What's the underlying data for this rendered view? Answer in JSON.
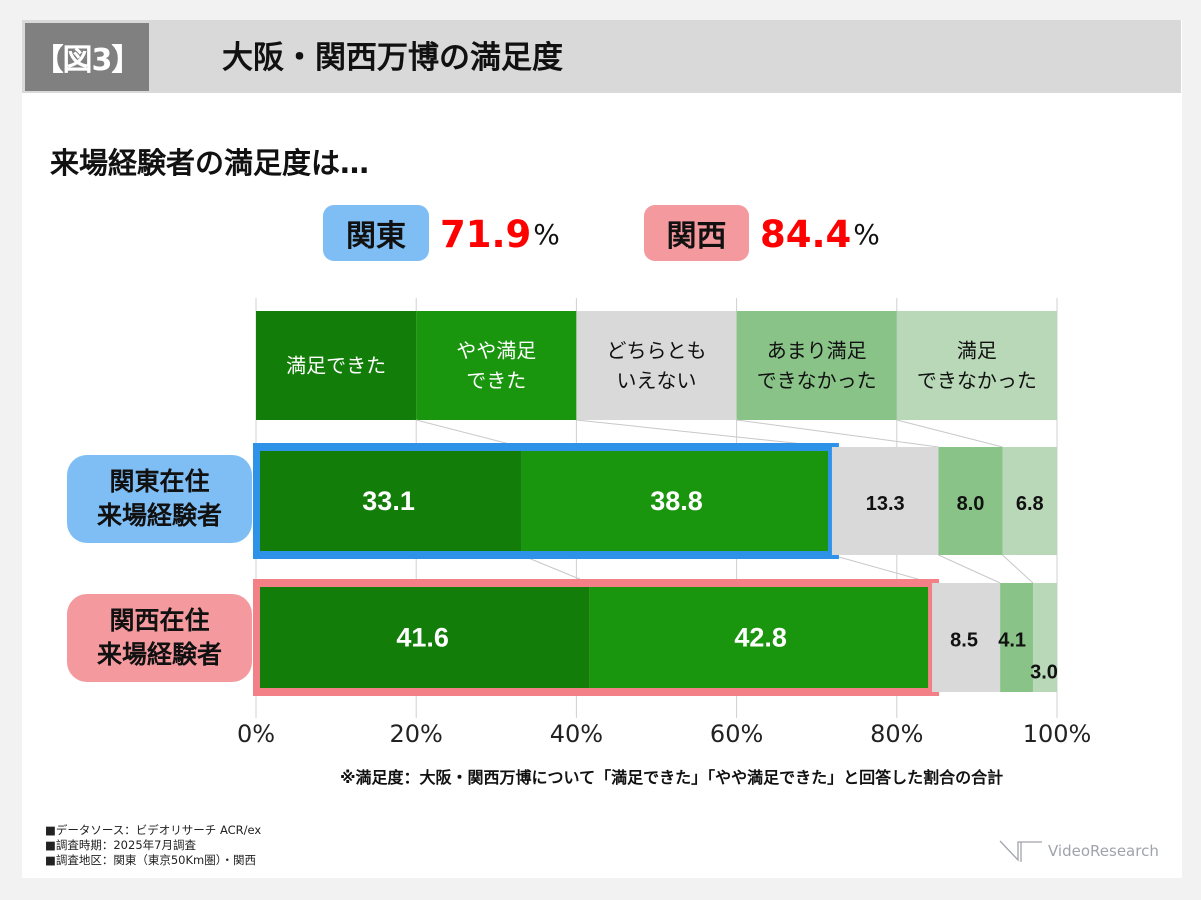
{
  "header": {
    "figure_label": "【図3】",
    "title": "大阪・関西万博の満足度"
  },
  "subtitle": "来場経験者の満足度は…",
  "summary": [
    {
      "region": "関東",
      "value": "71.9",
      "unit": "%",
      "badge_color": "#7fbef4"
    },
    {
      "region": "関西",
      "value": "84.4",
      "unit": "%",
      "badge_color": "#f4999e"
    }
  ],
  "chart_data": {
    "type": "bar",
    "orientation": "horizontal",
    "stacked": true,
    "normalized_percent": true,
    "categories": [
      "関東在住来場経験者",
      "関西在住来場経験者"
    ],
    "category_labels": [
      {
        "line1": "関東在住",
        "line2": "来場経験者",
        "color": "#7fbef4",
        "highlight_color": "#2e92e8"
      },
      {
        "line1": "関西在住",
        "line2": "来場経験者",
        "color": "#f4999e",
        "highlight_color": "#f38087"
      }
    ],
    "series": [
      {
        "name": "満足できた",
        "label_lines": [
          "満足できた"
        ],
        "color": "#127d08",
        "text_color": "#ffffff",
        "values": [
          33.1,
          41.6
        ]
      },
      {
        "name": "やや満足できた",
        "label_lines": [
          "やや満足",
          "できた"
        ],
        "color": "#1a950e",
        "text_color": "#ffffff",
        "values": [
          38.8,
          42.8
        ]
      },
      {
        "name": "どちらともいえない",
        "label_lines": [
          "どちらとも",
          "いえない"
        ],
        "color": "#d9d9d9",
        "text_color": "#111111",
        "values": [
          13.3,
          8.5
        ]
      },
      {
        "name": "あまり満足できなかった",
        "label_lines": [
          "あまり満足",
          "できなかった"
        ],
        "color": "#89c388",
        "text_color": "#111111",
        "values": [
          8.0,
          4.1
        ]
      },
      {
        "name": "満足できなかった",
        "label_lines": [
          "満足",
          "できなかった"
        ],
        "color": "#b8d8b8",
        "text_color": "#111111",
        "values": [
          6.8,
          3.0
        ]
      }
    ],
    "xlim": [
      0,
      100
    ],
    "xticks": [
      0,
      20,
      40,
      60,
      80,
      100
    ],
    "xtick_labels": [
      "0%",
      "20%",
      "40%",
      "60%",
      "80%",
      "100%"
    ],
    "grid": true,
    "legend_placement": "top",
    "highlighted_series": [
      "満足できた",
      "やや満足できた"
    ],
    "title": "",
    "xlabel": "",
    "ylabel": ""
  },
  "note": "※満足度：大阪・関西万博について「満足できた」「やや満足できた」と回答した割合の合計",
  "footer": [
    "■データソース：ビデオリサーチ ACR/ex",
    "■調査時期：2025年7月調査",
    "■調査地区：関東（東京50Km圏）・関西"
  ],
  "logo": {
    "text": "VideoResearch"
  }
}
